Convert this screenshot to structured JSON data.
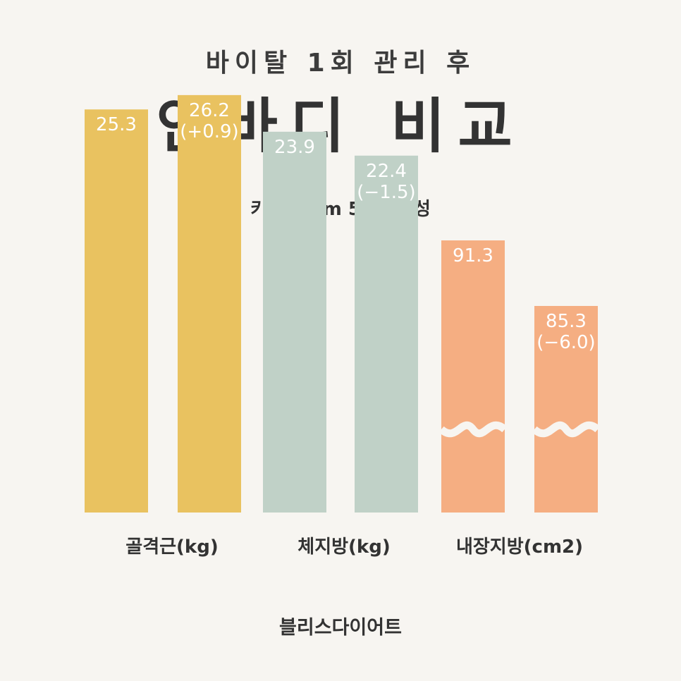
{
  "header": {
    "subtitle": "바이탈 1회 관리 후",
    "title": "인바디 비교",
    "caption": "키 160cm 50세 여성"
  },
  "footer": {
    "brand": "블리스다이어트"
  },
  "colors": {
    "skeletal_muscle": "#e9c260",
    "body_fat": "#c0d1c7",
    "visceral_fat": "#f5ae82",
    "value_text": "#ffffff",
    "break_mark": "#f7f5f1"
  },
  "chart_data": {
    "type": "bar",
    "title": "인바디 비교",
    "categories": [
      "골격근(kg)",
      "체지방(kg)",
      "내장지방(cm2)"
    ],
    "groups": [
      {
        "category": "골격근(kg)",
        "before": {
          "value": 25.3,
          "label": "25.3"
        },
        "after": {
          "value": 26.2,
          "label": "26.2",
          "change_label": "(+0.9)"
        },
        "color_key": "skeletal_muscle",
        "axis_break": false
      },
      {
        "category": "체지방(kg)",
        "before": {
          "value": 23.9,
          "label": "23.9"
        },
        "after": {
          "value": 22.4,
          "label": "22.4",
          "change_label": "(−1.5)"
        },
        "color_key": "body_fat",
        "axis_break": false
      },
      {
        "category": "내장지방(cm2)",
        "before": {
          "value": 91.3,
          "label": "91.3"
        },
        "after": {
          "value": 85.3,
          "label": "85.3",
          "change_label": "(−6.0)"
        },
        "color_key": "visceral_fat",
        "axis_break": true
      }
    ]
  }
}
